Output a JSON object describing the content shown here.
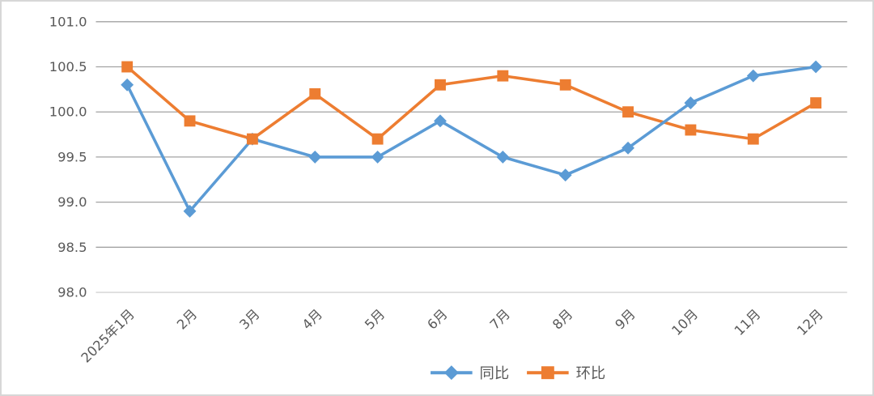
{
  "chart_data": {
    "type": "line",
    "title": "",
    "xlabel": "",
    "ylabel": "",
    "categories": [
      "2025年1月",
      "2月",
      "3月",
      "4月",
      "5月",
      "6月",
      "7月",
      "8月",
      "9月",
      "10月",
      "11月",
      "12月"
    ],
    "series": [
      {
        "name": "同比",
        "marker": "diamond",
        "color": "#5B9BD5",
        "values": [
          100.3,
          98.9,
          99.7,
          99.5,
          99.5,
          99.9,
          99.5,
          99.3,
          99.6,
          100.1,
          100.4,
          100.5
        ]
      },
      {
        "name": "环比",
        "marker": "square",
        "color": "#ED7D31",
        "values": [
          100.5,
          99.9,
          99.7,
          100.2,
          99.7,
          100.3,
          100.4,
          100.3,
          100.0,
          99.8,
          99.7,
          100.1
        ]
      }
    ],
    "ylim": [
      98.0,
      101.0
    ],
    "ytick_step": 0.5,
    "ytick_labels": [
      "101.0",
      "100.5",
      "100.0",
      "99.5",
      "99.0",
      "98.5",
      "98.0"
    ],
    "grid": true,
    "legend_position": "bottom",
    "colors": {
      "gridline": "#A3A3A3",
      "axis_line": "#D9D9D9",
      "tick_text": "#595959",
      "background": "#FFFFFF",
      "frame_border": "#D7D7D7"
    }
  }
}
